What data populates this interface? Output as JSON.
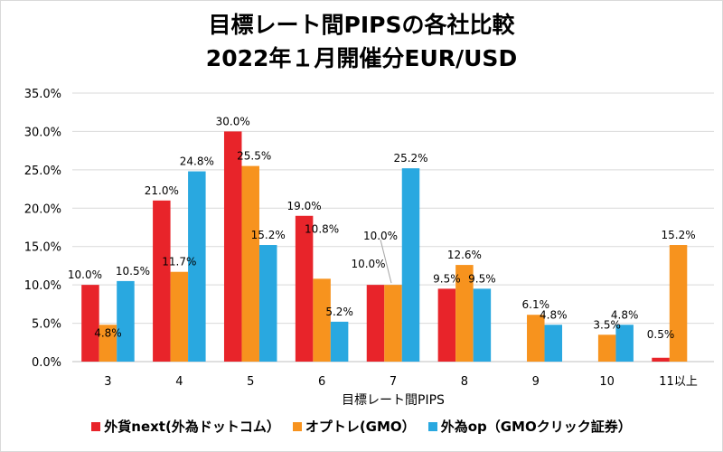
{
  "chart_data": {
    "type": "bar",
    "title": "目標レート間PIPSの各社比較",
    "subtitle": "2022年１月開催分EUR/USD",
    "xlabel": "目標レート間PIPS",
    "ylabel": "",
    "ylim": [
      0,
      35
    ],
    "yticks": [
      "0.0%",
      "5.0%",
      "10.0%",
      "15.0%",
      "20.0%",
      "25.0%",
      "30.0%",
      "35.0%"
    ],
    "grid": true,
    "legend_position": "bottom",
    "categories": [
      "3",
      "4",
      "5",
      "6",
      "7",
      "8",
      "9",
      "10",
      "11以上"
    ],
    "series": [
      {
        "name": "外貨next(外為ドットコム）",
        "color": "#e8242a",
        "values": [
          10.0,
          21.0,
          30.0,
          19.0,
          10.0,
          9.5,
          null,
          null,
          0.5
        ],
        "labels": [
          "10.0%",
          "21.0%",
          "30.0%",
          "19.0%",
          "10.0%",
          "9.5%",
          "",
          "",
          "0.5%"
        ]
      },
      {
        "name": "オプトレ(GMO）",
        "color": "#f7931e",
        "values": [
          4.8,
          11.7,
          25.5,
          10.8,
          10.0,
          12.6,
          6.1,
          3.5,
          15.2
        ],
        "labels": [
          "4.8%",
          "11.7%",
          "25.5%",
          "10.8%",
          "10.0%",
          "12.6%",
          "6.1%",
          "3.5%",
          "15.2%"
        ]
      },
      {
        "name": "外為op（GMOクリック証券）",
        "color": "#29a8e0",
        "values": [
          10.5,
          24.8,
          15.2,
          5.2,
          25.2,
          9.5,
          4.8,
          4.8,
          null
        ],
        "labels": [
          "10.5%",
          "24.8%",
          "15.2%",
          "5.2%",
          "25.2%",
          "9.5%",
          "4.8%",
          "4.8%",
          ""
        ]
      }
    ]
  }
}
